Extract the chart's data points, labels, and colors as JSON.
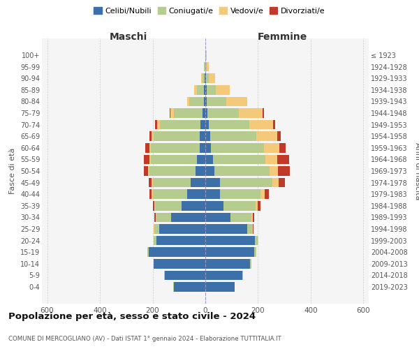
{
  "age_groups": [
    "0-4",
    "5-9",
    "10-14",
    "15-19",
    "20-24",
    "25-29",
    "30-34",
    "35-39",
    "40-44",
    "45-49",
    "50-54",
    "55-59",
    "60-64",
    "65-69",
    "70-74",
    "75-79",
    "80-84",
    "85-89",
    "90-94",
    "95-99",
    "100+"
  ],
  "birth_years": [
    "2019-2023",
    "2014-2018",
    "2009-2013",
    "2004-2008",
    "1999-2003",
    "1994-1998",
    "1989-1993",
    "1984-1988",
    "1979-1983",
    "1974-1978",
    "1969-1973",
    "1964-1968",
    "1959-1963",
    "1954-1958",
    "1949-1953",
    "1944-1948",
    "1939-1943",
    "1934-1938",
    "1929-1933",
    "1924-1928",
    "≤ 1923"
  ],
  "male": {
    "celibi": [
      120,
      155,
      195,
      215,
      185,
      175,
      130,
      90,
      70,
      55,
      38,
      32,
      22,
      20,
      18,
      10,
      6,
      4,
      2,
      1,
      0
    ],
    "coniugati": [
      2,
      2,
      2,
      5,
      10,
      18,
      55,
      100,
      130,
      145,
      175,
      175,
      185,
      175,
      155,
      110,
      55,
      28,
      8,
      3,
      1
    ],
    "vedovi": [
      0,
      0,
      0,
      1,
      1,
      2,
      4,
      3,
      4,
      5,
      5,
      5,
      5,
      8,
      10,
      12,
      8,
      10,
      5,
      2,
      0
    ],
    "divorziati": [
      0,
      0,
      0,
      0,
      1,
      2,
      5,
      6,
      8,
      10,
      15,
      22,
      15,
      10,
      8,
      3,
      0,
      0,
      0,
      0,
      0
    ]
  },
  "female": {
    "nubili": [
      110,
      140,
      170,
      185,
      188,
      158,
      95,
      70,
      55,
      55,
      35,
      28,
      22,
      18,
      12,
      8,
      5,
      4,
      2,
      1,
      0
    ],
    "coniugate": [
      2,
      2,
      5,
      8,
      12,
      20,
      80,
      120,
      155,
      200,
      210,
      200,
      200,
      175,
      155,
      120,
      75,
      35,
      10,
      4,
      2
    ],
    "vedove": [
      0,
      0,
      0,
      1,
      1,
      2,
      5,
      10,
      15,
      22,
      30,
      45,
      60,
      80,
      90,
      90,
      80,
      55,
      25,
      8,
      2
    ],
    "divorziate": [
      0,
      0,
      0,
      0,
      1,
      2,
      5,
      10,
      15,
      25,
      45,
      45,
      22,
      12,
      8,
      5,
      0,
      0,
      0,
      0,
      0
    ]
  },
  "colors": {
    "celibi": "#3d6fa8",
    "coniugati": "#b5cc8e",
    "vedovi": "#f5c97a",
    "divorziati": "#c0392b"
  },
  "title": "Popolazione per età, sesso e stato civile - 2024",
  "subtitle": "COMUNE DI MERCOGLIANO (AV) - Dati ISTAT 1° gennaio 2024 - Elaborazione TUTTITALIA.IT",
  "xlabel_left": "Maschi",
  "xlabel_right": "Femmine",
  "ylabel_left": "Fasce di età",
  "ylabel_right": "Anni di nascita",
  "xlim": 620,
  "xticks": [
    -600,
    -400,
    -200,
    0,
    200,
    400,
    600
  ],
  "legend_labels": [
    "Celibi/Nubili",
    "Coniugati/e",
    "Vedovi/e",
    "Divorziati/e"
  ],
  "bg_color": "#f5f5f5"
}
